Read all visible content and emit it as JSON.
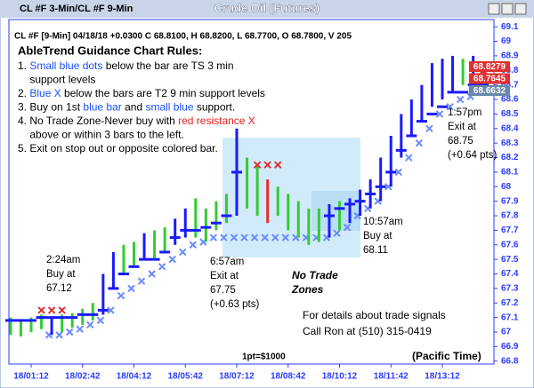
{
  "window": {
    "left_title": "CL #F 3-Min/CL #F 9-Min",
    "title": "Crude Oil (Futures)"
  },
  "chart_data": {
    "type": "ohlc",
    "header": "CL #F [9-Min] 04/18/18 +0.0300 C 68.8100, H 68.8200, L 68.7700, O 68.7800, V 205",
    "rules_title": "AbleTrend Guidance Chart Rules:",
    "rules": [
      [
        {
          "text": "1. ",
          "color": "#000"
        },
        {
          "text": "Small blue dots",
          "color": "#1a4fff"
        },
        {
          "text": " below the bar are TS 3 min",
          "color": "#000"
        }
      ],
      [
        {
          "text": "    support levels",
          "color": "#000"
        }
      ],
      [
        {
          "text": "2. ",
          "color": "#000"
        },
        {
          "text": "Blue X",
          "color": "#1a4fff"
        },
        {
          "text": " below the bars are T2 9 min support levels",
          "color": "#000"
        }
      ],
      [
        {
          "text": "3. Buy on 1st ",
          "color": "#000"
        },
        {
          "text": "blue bar",
          "color": "#1a4fff"
        },
        {
          "text": " and ",
          "color": "#000"
        },
        {
          "text": "small blue",
          "color": "#1a4fff"
        },
        {
          "text": " support.",
          "color": "#000"
        }
      ],
      [
        {
          "text": "4. No Trade Zone-Never buy with ",
          "color": "#000"
        },
        {
          "text": "red resistance X",
          "color": "#e02020"
        }
      ],
      [
        {
          "text": "    above or within 3 bars to the left.",
          "color": "#000"
        }
      ],
      [
        {
          "text": "5. Exit on stop out or opposite colored bar.",
          "color": "#000"
        }
      ]
    ],
    "categories": [
      null,
      null,
      "18/01:12",
      null,
      null,
      null,
      null,
      "18/02:42",
      null,
      null,
      null,
      null,
      "18/04:12",
      null,
      null,
      null,
      null,
      "18/05:42",
      null,
      null,
      null,
      null,
      "18/07:12",
      null,
      null,
      null,
      null,
      "18/08:42",
      null,
      null,
      null,
      null,
      "18/10:12",
      null,
      null,
      null,
      null,
      "18/11:42",
      null,
      null,
      null,
      null,
      "18/13:12",
      null,
      null,
      null,
      null
    ],
    "low": [
      66.98,
      66.97,
      67.0,
      67.02,
      66.98,
      67.0,
      67.03,
      67.05,
      67.08,
      67.12,
      67.3,
      67.4,
      67.45,
      67.5,
      67.5,
      67.55,
      67.6,
      67.65,
      67.65,
      67.62,
      67.7,
      67.75,
      67.8,
      67.85,
      67.8,
      67.75,
      67.8,
      67.7,
      67.65,
      67.6,
      67.62,
      67.65,
      67.7,
      67.75,
      67.8,
      67.85,
      67.9,
      68.0,
      68.2,
      68.35,
      68.45,
      68.55,
      68.6,
      68.65,
      68.7,
      68.72,
      68.7
    ],
    "high": [
      67.1,
      67.08,
      67.1,
      67.12,
      67.1,
      67.12,
      67.13,
      67.16,
      67.2,
      67.4,
      67.55,
      67.6,
      67.62,
      67.68,
      67.7,
      67.72,
      67.78,
      67.85,
      67.92,
      67.85,
      67.9,
      67.95,
      68.4,
      68.2,
      68.15,
      68.05,
      68.0,
      67.95,
      67.9,
      67.85,
      67.85,
      67.88,
      67.9,
      67.92,
      67.98,
      68.05,
      68.2,
      68.35,
      68.5,
      68.6,
      68.7,
      68.85,
      68.88,
      68.9,
      68.88,
      68.9,
      68.85
    ],
    "bar_colors": [
      "#33cc33",
      "#33cc33",
      "#33cc33",
      "#33cc33",
      "#1a1aff",
      "#33cc33",
      "#33cc33",
      "#33cc33",
      "#33cc33",
      "#1a1aff",
      "#1a1aff",
      "#33cc33",
      "#33cc33",
      "#1a1aff",
      "#33cc33",
      "#33cc33",
      "#1a1aff",
      "#1a1aff",
      "#33cc33",
      "#33cc33",
      "#33cc33",
      "#33cc33",
      "#1a1aff",
      "#33cc33",
      "#33cc33",
      "#e03030",
      "#33cc33",
      "#33cc33",
      "#33cc33",
      "#33cc33",
      "#33cc33",
      "#1a1aff",
      "#33cc33",
      "#1a1aff",
      "#1a1aff",
      "#1a1aff",
      "#1a1aff",
      "#1a1aff",
      "#1a1aff",
      "#1a1aff",
      "#1a1aff",
      "#1a1aff",
      "#1a1aff",
      "#1a1aff",
      "#33cc33",
      "#1a1aff",
      "#e03030"
    ],
    "ts_support": [
      67.08,
      67.08,
      67.08,
      67.1,
      67.1,
      67.1,
      67.1,
      67.12,
      67.12,
      67.15,
      67.3,
      67.4,
      67.45,
      67.5,
      67.5,
      67.55,
      67.65,
      67.7,
      67.7,
      67.72,
      67.75,
      67.8,
      68.1,
      null,
      null,
      null,
      null,
      null,
      null,
      null,
      null,
      67.8,
      67.85,
      67.88,
      67.9,
      67.95,
      68.0,
      68.1,
      68.25,
      68.35,
      68.45,
      68.5,
      68.55,
      68.65,
      68.65,
      68.7,
      68.7
    ],
    "t2_support": [
      null,
      null,
      null,
      null,
      66.98,
      66.98,
      67.0,
      67.02,
      67.05,
      67.08,
      67.15,
      67.25,
      67.3,
      67.35,
      67.4,
      67.45,
      67.5,
      67.55,
      67.6,
      67.62,
      67.65,
      67.65,
      67.65,
      67.65,
      67.65,
      67.65,
      67.65,
      67.65,
      67.65,
      67.65,
      67.65,
      67.65,
      67.68,
      67.72,
      67.8,
      67.85,
      67.9,
      68.0,
      68.1,
      68.2,
      68.3,
      68.4,
      68.5,
      68.55,
      68.6,
      68.62,
      68.65
    ],
    "resistance": [
      null,
      null,
      null,
      67.15,
      67.15,
      67.15,
      null,
      null,
      null,
      null,
      null,
      null,
      null,
      null,
      null,
      null,
      null,
      null,
      null,
      null,
      null,
      null,
      null,
      null,
      68.15,
      68.15,
      68.15,
      null,
      null,
      null,
      null,
      null,
      null,
      null,
      null,
      null,
      null,
      null,
      null,
      null,
      null,
      null,
      null,
      null,
      null,
      null,
      68.8
    ],
    "ts_color": "#1a1aff",
    "t2_color": "#6a8cff",
    "resistance_color": "#e03030",
    "ylim": [
      66.78,
      69.15
    ],
    "yticks": [
      66.8,
      66.9,
      67,
      67.1,
      67.2,
      67.3,
      67.4,
      67.5,
      67.6,
      67.7,
      67.8,
      67.9,
      68,
      68.1,
      68.2,
      68.3,
      68.4,
      68.5,
      68.6,
      68.7,
      68.8,
      68.9,
      69,
      69.1
    ],
    "price_tags": [
      {
        "label": "68.8279",
        "color": "#e03030"
      },
      {
        "label": "68.7645",
        "color": "#e03030"
      },
      {
        "label": "68.6632",
        "color": "#6688aa"
      }
    ],
    "annotations": [
      [
        "2:24am",
        "Buy at",
        "67.12"
      ],
      [
        "6:57am",
        "Exit at",
        "67.75",
        "(+0.63 pts)"
      ],
      [
        "10:57am",
        "Buy at",
        "68.11"
      ],
      [
        "1:57pm",
        "Exit at",
        "68.75",
        "(+0.64 pts)"
      ]
    ],
    "zone_label": [
      "No Trade",
      "Zones"
    ],
    "contact": [
      "For details about trade signals",
      "Call Ron at (510) 315-0419"
    ],
    "point_value": "1pt=$1000",
    "timezone": "(Pacific Time)"
  }
}
